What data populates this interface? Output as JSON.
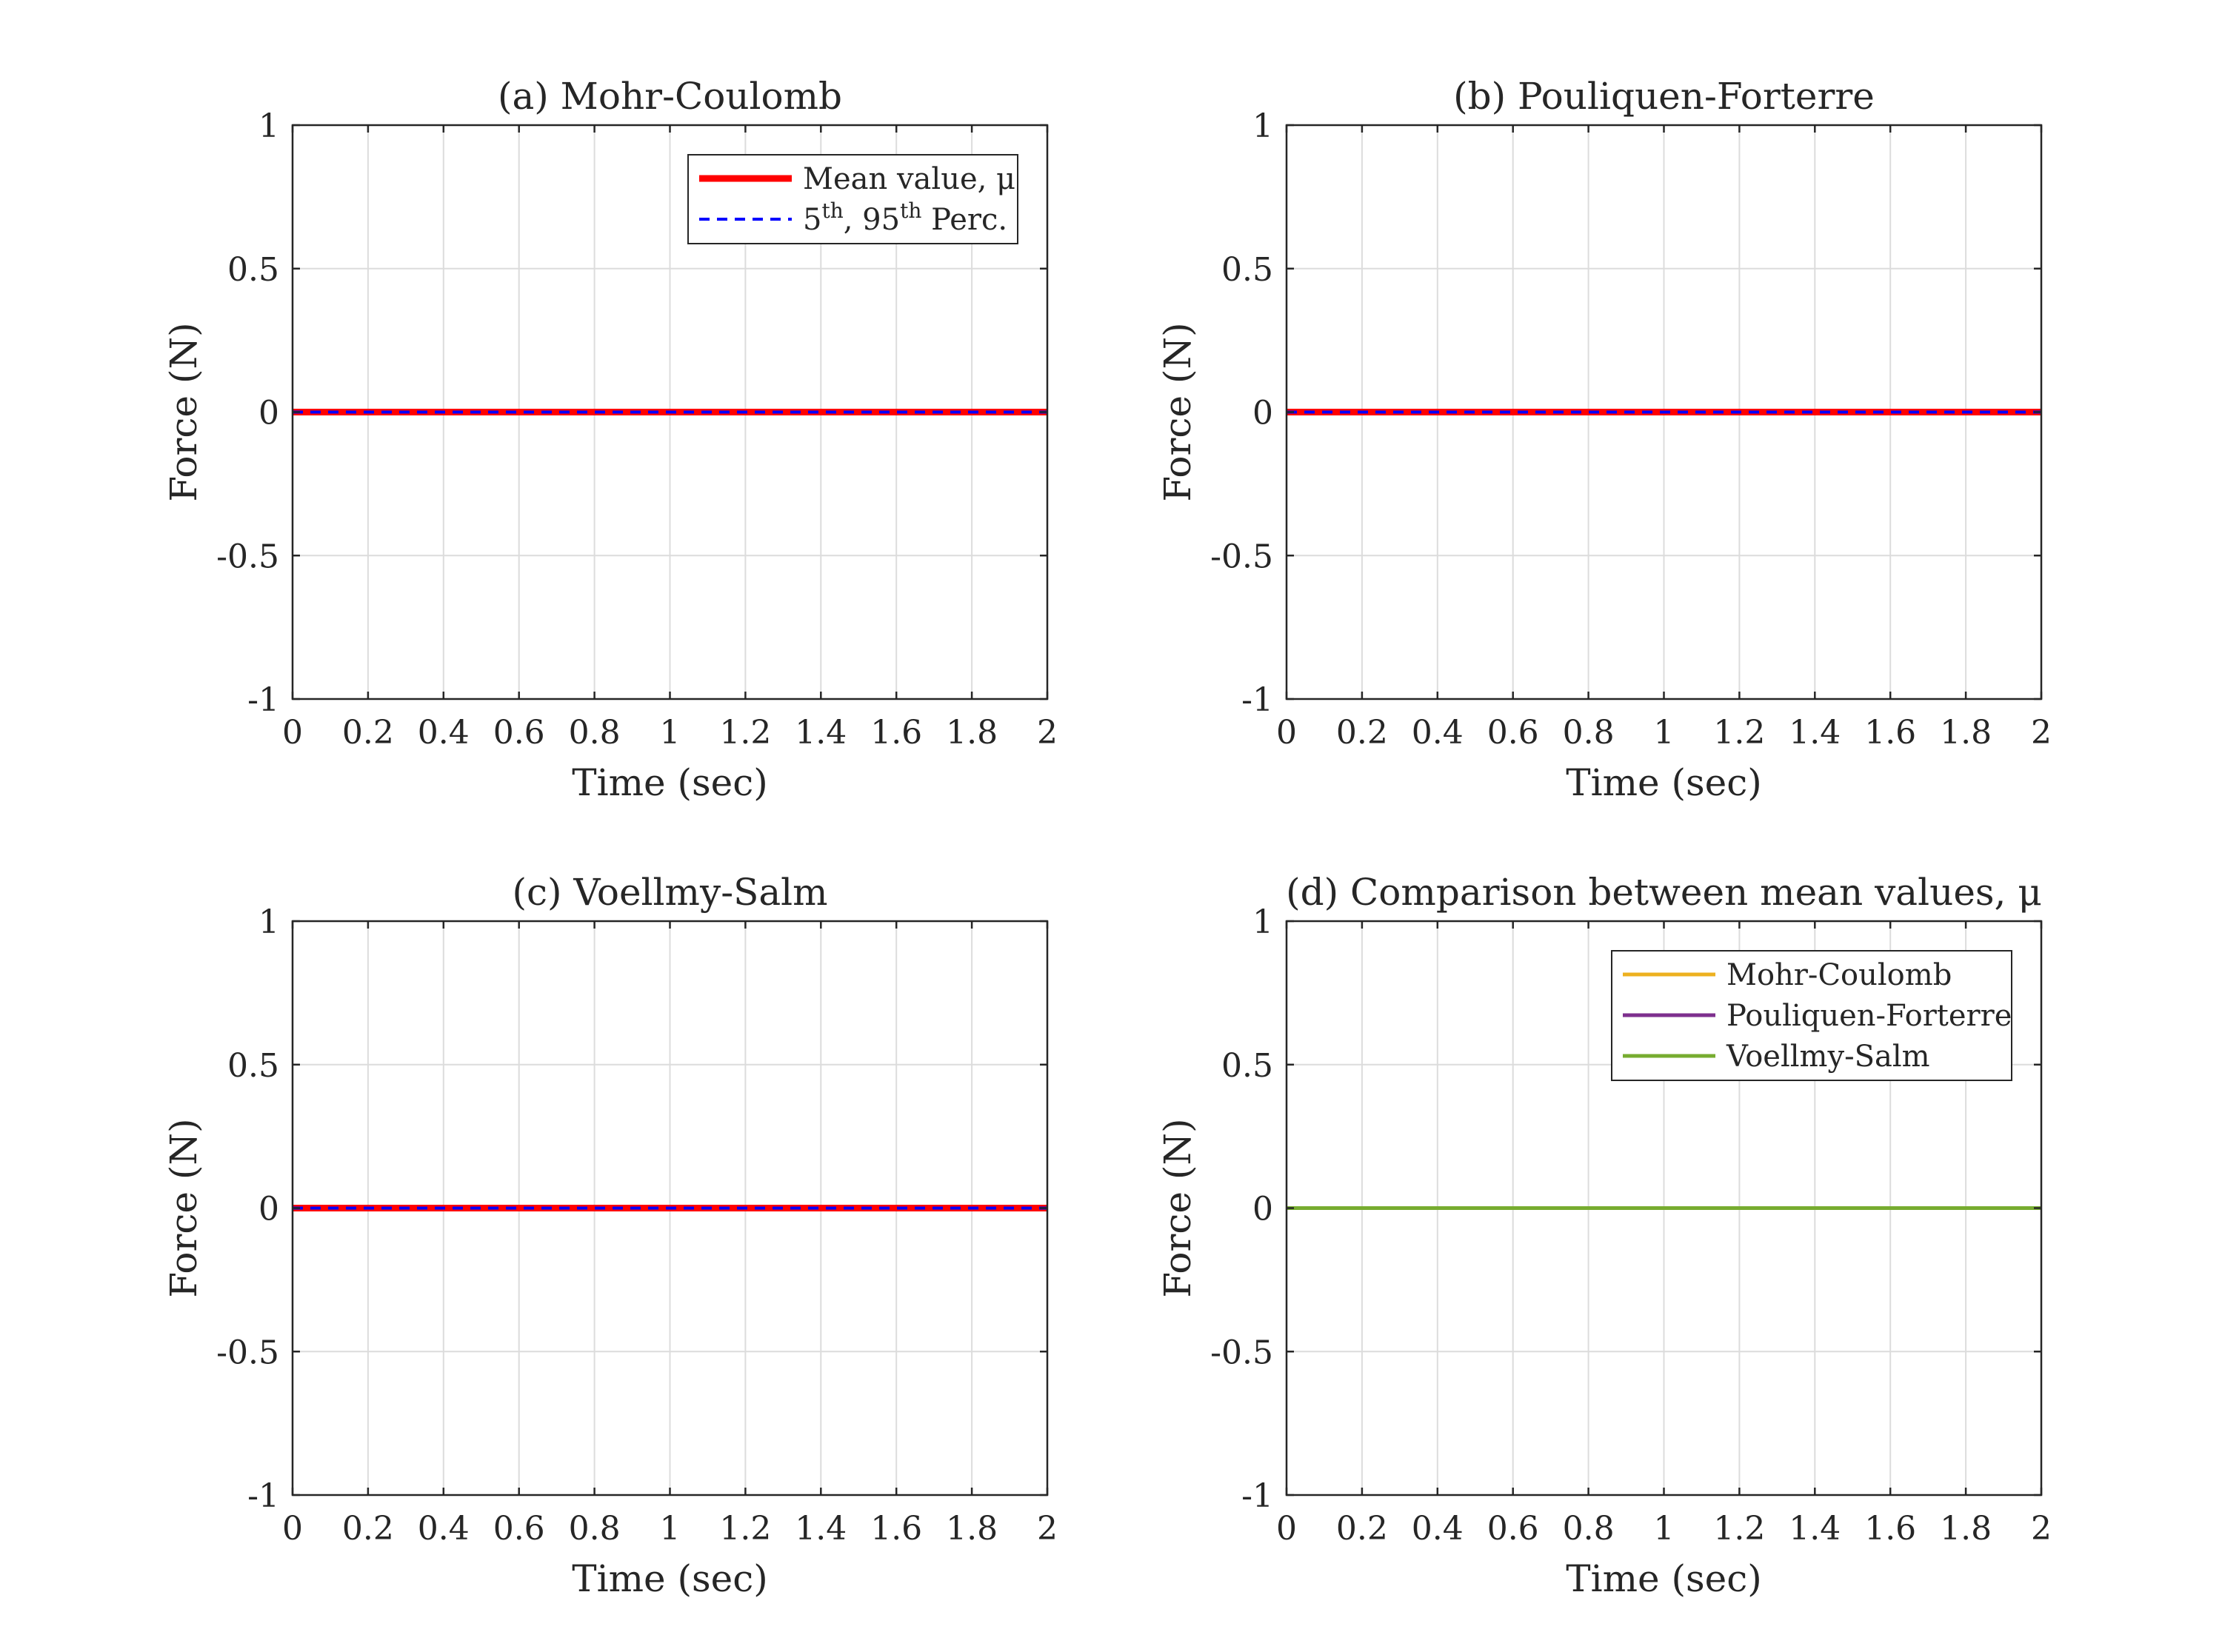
{
  "chart_data": [
    {
      "type": "line",
      "title": "(a) Mohr-Coulomb",
      "xlabel": "Time (sec)",
      "ylabel": "Force (N)",
      "xlim": [
        0,
        2
      ],
      "ylim": [
        -1,
        1
      ],
      "xticks": [
        "0",
        "0.2",
        "0.4",
        "0.6",
        "0.8",
        "1",
        "1.2",
        "1.4",
        "1.6",
        "1.8",
        "2"
      ],
      "yticks": [
        "1",
        "0.5",
        "0",
        "-0.5",
        "-1"
      ],
      "grid": true,
      "legend_position": "top-right",
      "series": [
        {
          "name": "Mean value, μ",
          "x": [
            0,
            2
          ],
          "y": [
            0,
            0
          ],
          "color": "#ff0000",
          "style": "solid",
          "legend": "mean"
        },
        {
          "name": "5th, 95th Perc.",
          "x": [
            0,
            2
          ],
          "y": [
            0,
            0
          ],
          "color": "#0000ff",
          "style": "dashed",
          "legend": "perc"
        }
      ]
    },
    {
      "type": "line",
      "title": "(b) Pouliquen-Forterre",
      "xlabel": "Time (sec)",
      "ylabel": "Force (N)",
      "xlim": [
        0,
        2
      ],
      "ylim": [
        -1,
        1
      ],
      "xticks": [
        "0",
        "0.2",
        "0.4",
        "0.6",
        "0.8",
        "1",
        "1.2",
        "1.4",
        "1.6",
        "1.8",
        "2"
      ],
      "yticks": [
        "1",
        "0.5",
        "0",
        "-0.5",
        "-1"
      ],
      "grid": true,
      "legend_position": "none",
      "series": [
        {
          "x": [
            0,
            2
          ],
          "y": [
            0,
            0
          ],
          "color": "#ff0000",
          "style": "solid"
        },
        {
          "x": [
            0,
            2
          ],
          "y": [
            0,
            0
          ],
          "color": "#0000ff",
          "style": "dashed"
        }
      ]
    },
    {
      "type": "line",
      "title": "(c) Voellmy-Salm",
      "xlabel": "Time (sec)",
      "ylabel": "Force (N)",
      "xlim": [
        0,
        2
      ],
      "ylim": [
        -1,
        1
      ],
      "xticks": [
        "0",
        "0.2",
        "0.4",
        "0.6",
        "0.8",
        "1",
        "1.2",
        "1.4",
        "1.6",
        "1.8",
        "2"
      ],
      "yticks": [
        "1",
        "0.5",
        "0",
        "-0.5",
        "-1"
      ],
      "grid": true,
      "legend_position": "none",
      "series": [
        {
          "x": [
            0,
            2
          ],
          "y": [
            0,
            0
          ],
          "color": "#ff0000",
          "style": "solid"
        },
        {
          "x": [
            0,
            2
          ],
          "y": [
            0,
            0
          ],
          "color": "#0000ff",
          "style": "dashed"
        }
      ]
    },
    {
      "type": "line",
      "title": "(d) Comparison between mean values, μ",
      "xlabel": "Time (sec)",
      "ylabel": "Force (N)",
      "xlim": [
        0,
        2
      ],
      "ylim": [
        -1,
        1
      ],
      "xticks": [
        "0",
        "0.2",
        "0.4",
        "0.6",
        "0.8",
        "1",
        "1.2",
        "1.4",
        "1.6",
        "1.8",
        "2"
      ],
      "yticks": [
        "1",
        "0.5",
        "0",
        "-0.5",
        "-1"
      ],
      "grid": true,
      "legend_position": "top-right",
      "series": [
        {
          "name": "Mohr-Coulomb",
          "x": [
            0,
            2
          ],
          "y": [
            0,
            0
          ],
          "color": "#edb120",
          "style": "solid",
          "legend": "plain"
        },
        {
          "name": "Pouliquen-Forterre",
          "x": [
            0,
            2
          ],
          "y": [
            0,
            0
          ],
          "color": "#7e2f8e",
          "style": "solid",
          "legend": "plain"
        },
        {
          "name": "Voellmy-Salm",
          "x": [
            0,
            2
          ],
          "y": [
            0,
            0
          ],
          "color": "#77ac30",
          "style": "solid",
          "legend": "plain"
        }
      ]
    }
  ]
}
